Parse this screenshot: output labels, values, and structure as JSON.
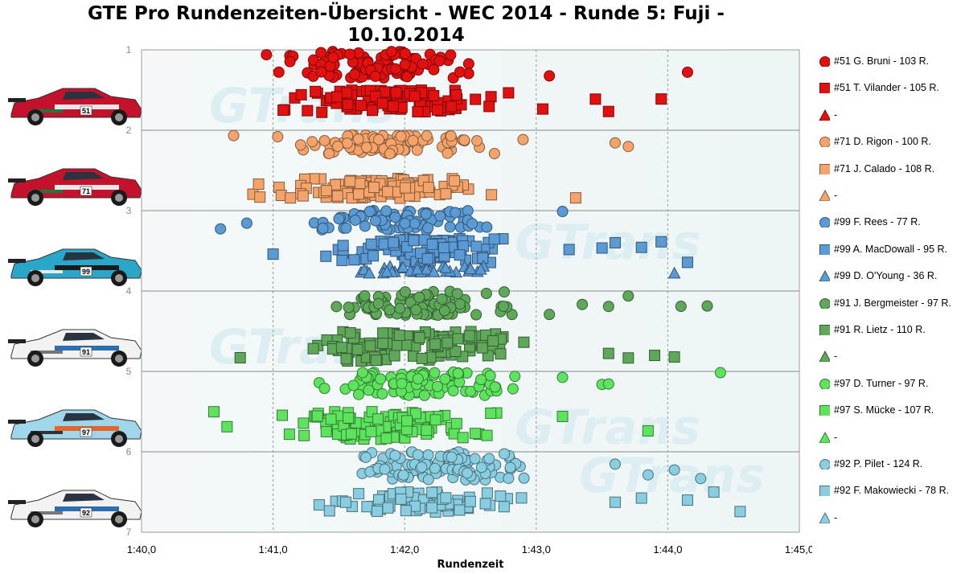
{
  "chart_data": {
    "type": "scatter",
    "title": "GTE Pro Rundenzeiten-Übersicht - WEC 2014 - Runde 5: Fuji - 10.10.2014",
    "xlabel": "Rundenzeit",
    "ylabel": "",
    "x_ticks": [
      "1:40,0",
      "1:41,0",
      "1:42,0",
      "1:43,0",
      "1:44,0",
      "1:45,0"
    ],
    "xlim_seconds": [
      100,
      105
    ],
    "y_ticks": [
      "1",
      "2",
      "3",
      "4",
      "5",
      "6",
      "7"
    ],
    "ylim": [
      1,
      7
    ],
    "grid": "horizontal lines at integer y",
    "legend_position": "right",
    "watermark": "GTrans",
    "series": [
      {
        "name": "#51 G. Bruni - 103 R.",
        "color": "#e31010",
        "marker": "circle",
        "y_band": [
          1.02,
          1.35
        ],
        "x_core": [
          100.75,
          102.8
        ],
        "x_outliers": [
          103.1,
          104.15
        ]
      },
      {
        "name": "#51 T. Vilander - 105 R.",
        "color": "#e31010",
        "marker": "square",
        "y_band": [
          1.5,
          1.78
        ],
        "x_core": [
          100.85,
          102.85
        ],
        "x_outliers": [
          103.05,
          103.45,
          103.55,
          103.95
        ]
      },
      {
        "name": "-",
        "color": "#e31010",
        "marker": "triangle"
      },
      {
        "name": "#71 D. Rigon - 100 R.",
        "color": "#f4a46a",
        "marker": "circle",
        "y_band": [
          2.05,
          2.3
        ],
        "x_core": [
          100.95,
          102.8
        ],
        "x_outliers": [
          102.9,
          103.6,
          103.7,
          100.7
        ]
      },
      {
        "name": "#71 J. Calado - 108 R.",
        "color": "#f4a46a",
        "marker": "square",
        "y_band": [
          2.6,
          2.85
        ],
        "x_core": [
          100.8,
          102.8
        ],
        "x_outliers": [
          103.3,
          100.9
        ]
      },
      {
        "name": "-",
        "color": "#f4a46a",
        "marker": "triangle"
      },
      {
        "name": "#99 F. Rees - 77 R.",
        "color": "#5b9bd5",
        "marker": "circle",
        "y_band": [
          3.0,
          3.25
        ],
        "x_core": [
          101.05,
          102.9
        ],
        "x_outliers": [
          100.6,
          100.8,
          103.2
        ]
      },
      {
        "name": "#99 A. MacDowall - 95 R.",
        "color": "#5b9bd5",
        "marker": "square",
        "y_band": [
          3.35,
          3.65
        ],
        "x_core": [
          101.3,
          102.95
        ],
        "x_outliers": [
          101.0,
          103.25,
          103.5,
          103.6,
          103.8,
          103.95,
          104.15
        ]
      },
      {
        "name": "#99 D. O'Young - 36 R.",
        "color": "#5b9bd5",
        "marker": "triangle",
        "y_band": [
          3.68,
          3.78
        ],
        "x_core": [
          101.35,
          102.85
        ],
        "x_outliers": [
          104.05
        ]
      },
      {
        "name": "#91 J. Bergmeister - 97 R.",
        "color": "#5fa85a",
        "marker": "circle",
        "y_band": [
          4.0,
          4.3
        ],
        "x_core": [
          101.2,
          102.95
        ],
        "x_outliers": [
          103.1,
          103.35,
          103.55,
          103.7,
          104.1,
          104.3
        ]
      },
      {
        "name": "#91 R. Lietz - 110 R.",
        "color": "#5fa85a",
        "marker": "square",
        "y_band": [
          4.5,
          4.88
        ],
        "x_core": [
          100.9,
          103.25
        ],
        "x_outliers": [
          100.75,
          103.55,
          103.7,
          103.9,
          104.05
        ]
      },
      {
        "name": "-",
        "color": "#5fa85a",
        "marker": "triangle"
      },
      {
        "name": "#97 D. Turner - 97 R.",
        "color": "#5ee35e",
        "marker": "circle",
        "y_band": [
          5.0,
          5.3
        ],
        "x_core": [
          101.25,
          102.95
        ],
        "x_outliers": [
          103.2,
          103.5,
          103.55,
          104.4
        ]
      },
      {
        "name": "#97 S. Mücke - 107 R.",
        "color": "#5ee35e",
        "marker": "square",
        "y_band": [
          5.5,
          5.85
        ],
        "x_core": [
          100.85,
          102.85
        ],
        "x_outliers": [
          100.55,
          100.65,
          103.2,
          103.85
        ]
      },
      {
        "name": "-",
        "color": "#5ee35e",
        "marker": "triangle"
      },
      {
        "name": "#92 P. Pilet - 124 R.",
        "color": "#88cde0",
        "marker": "circle",
        "y_band": [
          6.0,
          6.35
        ],
        "x_core": [
          101.5,
          103.1
        ],
        "x_outliers": [
          103.6,
          103.85,
          104.05,
          104.25
        ]
      },
      {
        "name": "#92 F. Makowiecki - 78 R.",
        "color": "#88cde0",
        "marker": "square",
        "y_band": [
          6.5,
          6.75
        ],
        "x_core": [
          101.25,
          103.0
        ],
        "x_outliers": [
          103.6,
          103.8,
          104.15,
          104.35,
          104.55
        ]
      },
      {
        "name": "-",
        "color": "#88cde0",
        "marker": "triangle"
      }
    ],
    "cars": [
      {
        "number": "51",
        "livery": "red",
        "name": "car-51-image"
      },
      {
        "number": "71",
        "livery": "red",
        "name": "car-71-image"
      },
      {
        "number": "99",
        "livery": "blue",
        "name": "car-99-image"
      },
      {
        "number": "91",
        "livery": "white",
        "name": "car-91-image"
      },
      {
        "number": "97",
        "livery": "lightblue",
        "name": "car-97-image"
      },
      {
        "number": "92",
        "livery": "white",
        "name": "car-92-image"
      }
    ]
  }
}
